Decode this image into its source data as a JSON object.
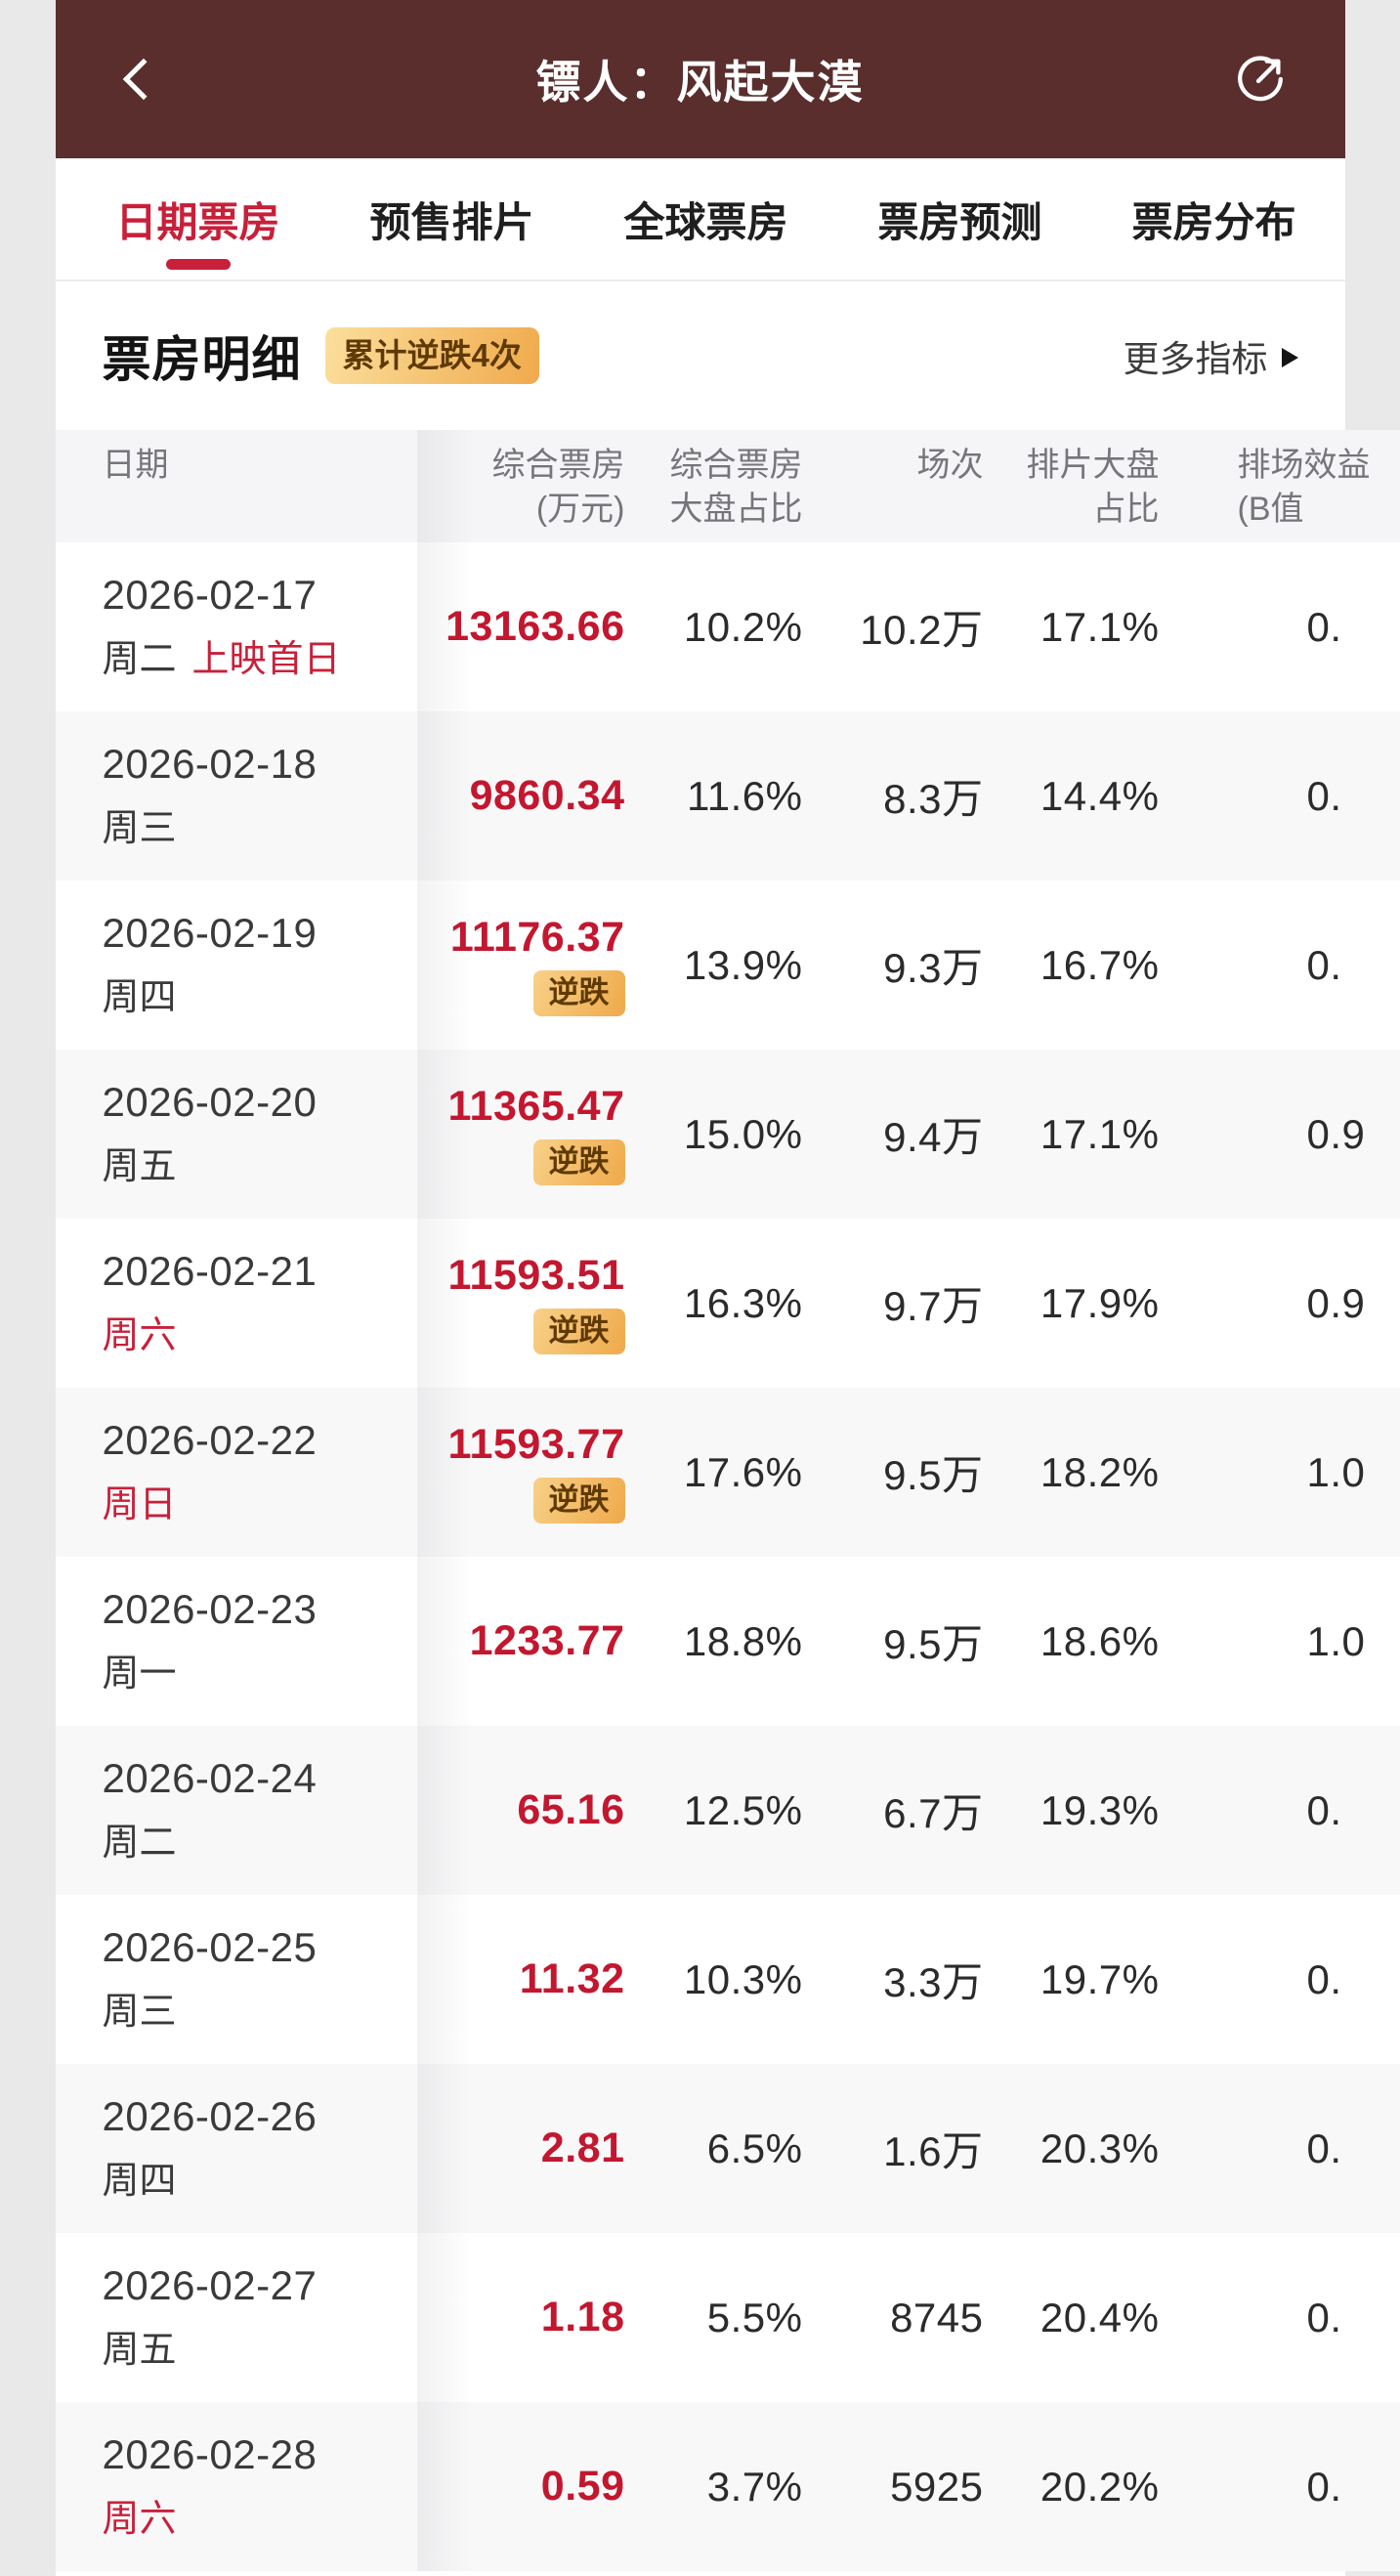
{
  "header": {
    "title": "镖人：风起大漠",
    "back_icon": "chevron-left",
    "share_icon": "share-circle-arrow"
  },
  "tabs": [
    {
      "label": "日期票房",
      "active": true
    },
    {
      "label": "预售排片",
      "active": false
    },
    {
      "label": "全球票房",
      "active": false
    },
    {
      "label": "票房预测",
      "active": false
    },
    {
      "label": "票房分布",
      "active": false
    }
  ],
  "section": {
    "title": "票房明细",
    "badge": "累计逆跌4次",
    "more_label": "更多指标"
  },
  "table": {
    "nidie_label": "逆跌",
    "columns": [
      {
        "lines": [
          "日期"
        ]
      },
      {
        "lines": [
          "综合票房",
          "(万元)"
        ]
      },
      {
        "lines": [
          "综合票房",
          "大盘占比"
        ]
      },
      {
        "lines": [
          "场次"
        ]
      },
      {
        "lines": [
          "排片大盘",
          "占比"
        ]
      },
      {
        "lines": [
          "排场效益",
          "(B值"
        ]
      }
    ],
    "rows": [
      {
        "date": "2026-02-17",
        "weekday": "周二",
        "weekend": false,
        "tag": "上映首日",
        "boxoffice": "13163.66",
        "nidie": false,
        "share": "10.2%",
        "sessions": "10.2万",
        "scheduling": "17.1%",
        "b": "0."
      },
      {
        "date": "2026-02-18",
        "weekday": "周三",
        "weekend": false,
        "tag": "",
        "boxoffice": "9860.34",
        "nidie": false,
        "share": "11.6%",
        "sessions": "8.3万",
        "scheduling": "14.4%",
        "b": "0."
      },
      {
        "date": "2026-02-19",
        "weekday": "周四",
        "weekend": false,
        "tag": "",
        "boxoffice": "11176.37",
        "nidie": true,
        "share": "13.9%",
        "sessions": "9.3万",
        "scheduling": "16.7%",
        "b": "0."
      },
      {
        "date": "2026-02-20",
        "weekday": "周五",
        "weekend": false,
        "tag": "",
        "boxoffice": "11365.47",
        "nidie": true,
        "share": "15.0%",
        "sessions": "9.4万",
        "scheduling": "17.1%",
        "b": "0.9"
      },
      {
        "date": "2026-02-21",
        "weekday": "周六",
        "weekend": true,
        "tag": "",
        "boxoffice": "11593.51",
        "nidie": true,
        "share": "16.3%",
        "sessions": "9.7万",
        "scheduling": "17.9%",
        "b": "0.9"
      },
      {
        "date": "2026-02-22",
        "weekday": "周日",
        "weekend": true,
        "tag": "",
        "boxoffice": "11593.77",
        "nidie": true,
        "share": "17.6%",
        "sessions": "9.5万",
        "scheduling": "18.2%",
        "b": "1.0"
      },
      {
        "date": "2026-02-23",
        "weekday": "周一",
        "weekend": false,
        "tag": "",
        "boxoffice": "1233.77",
        "nidie": false,
        "share": "18.8%",
        "sessions": "9.5万",
        "scheduling": "18.6%",
        "b": "1.0"
      },
      {
        "date": "2026-02-24",
        "weekday": "周二",
        "weekend": false,
        "tag": "",
        "boxoffice": "65.16",
        "nidie": false,
        "share": "12.5%",
        "sessions": "6.7万",
        "scheduling": "19.3%",
        "b": "0."
      },
      {
        "date": "2026-02-25",
        "weekday": "周三",
        "weekend": false,
        "tag": "",
        "boxoffice": "11.32",
        "nidie": false,
        "share": "10.3%",
        "sessions": "3.3万",
        "scheduling": "19.7%",
        "b": "0."
      },
      {
        "date": "2026-02-26",
        "weekday": "周四",
        "weekend": false,
        "tag": "",
        "boxoffice": "2.81",
        "nidie": false,
        "share": "6.5%",
        "sessions": "1.6万",
        "scheduling": "20.3%",
        "b": "0."
      },
      {
        "date": "2026-02-27",
        "weekday": "周五",
        "weekend": false,
        "tag": "",
        "boxoffice": "1.18",
        "nidie": false,
        "share": "5.5%",
        "sessions": "8745",
        "scheduling": "20.4%",
        "b": "0."
      },
      {
        "date": "2026-02-28",
        "weekday": "周六",
        "weekend": true,
        "tag": "",
        "boxoffice": "0.59",
        "nidie": false,
        "share": "3.7%",
        "sessions": "5925",
        "scheduling": "20.2%",
        "b": "0."
      }
    ]
  },
  "colors": {
    "header_bg": "#592e2d",
    "accent_red": "#c8203a",
    "value_red": "#c3172f",
    "badge_text": "#5f3a04",
    "badge_grad_a": "#fbdf9d",
    "badge_grad_b": "#f0aa4c",
    "thead_bg": "#f5f5f7",
    "row_alt": "#f8f8f9",
    "text_dark": "#2b2b2d",
    "text_grey": "#75757b"
  }
}
